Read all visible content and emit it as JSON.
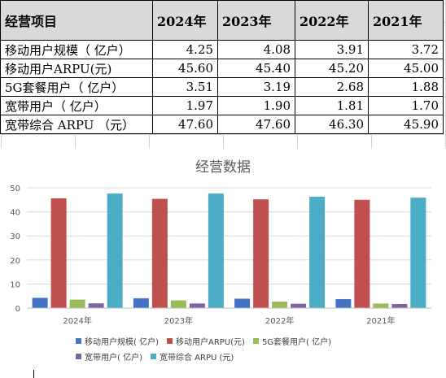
{
  "table": {
    "header": [
      "经营项目",
      "2024年",
      "2023年",
      "2022年",
      "2021年"
    ],
    "rows": [
      {
        "label": "移动用户规模（ 亿户）",
        "values": [
          "4.25",
          "4.08",
          "3.91",
          "3.72"
        ]
      },
      {
        "label": "移动用户ARPU(元)",
        "values": [
          "45.60",
          "45.40",
          "45.20",
          "45.00"
        ]
      },
      {
        "label": "5G套餐用户（ 亿户）",
        "values": [
          "3.51",
          "3.19",
          "2.68",
          "1.88"
        ]
      },
      {
        "label": "宽带用户（ 亿户）",
        "values": [
          "1.97",
          "1.90",
          "1.81",
          "1.70"
        ]
      },
      {
        "label": "宽带综合 ARPU （元）",
        "values": [
          "47.60",
          "47.60",
          "46.30",
          "45.90"
        ]
      }
    ]
  },
  "chart_data": {
    "type": "bar",
    "title": "经营数据",
    "categories": [
      "2024年",
      "2023年",
      "2022年",
      "2021年"
    ],
    "ylim": [
      0,
      50
    ],
    "yticks": [
      0,
      10,
      20,
      30,
      40,
      50
    ],
    "grid": true,
    "legend_position": "bottom",
    "series": [
      {
        "name": "移动用户规模( 亿户)",
        "color": "#4472c4",
        "values": [
          4.25,
          4.08,
          3.91,
          3.72
        ]
      },
      {
        "name": "移动用户ARPU(元)",
        "color": "#c0504d",
        "values": [
          45.6,
          45.4,
          45.2,
          45.0
        ]
      },
      {
        "name": "5G套餐用户( 亿户)",
        "color": "#9bbb59",
        "values": [
          3.51,
          3.19,
          2.68,
          1.88
        ]
      },
      {
        "name": "宽带用户( 亿户)",
        "color": "#8064a2",
        "values": [
          1.97,
          1.9,
          1.81,
          1.7
        ]
      },
      {
        "name": "宽带综合 ARPU (元)",
        "color": "#4bacc6",
        "values": [
          47.6,
          47.6,
          46.3,
          45.9
        ]
      }
    ]
  }
}
